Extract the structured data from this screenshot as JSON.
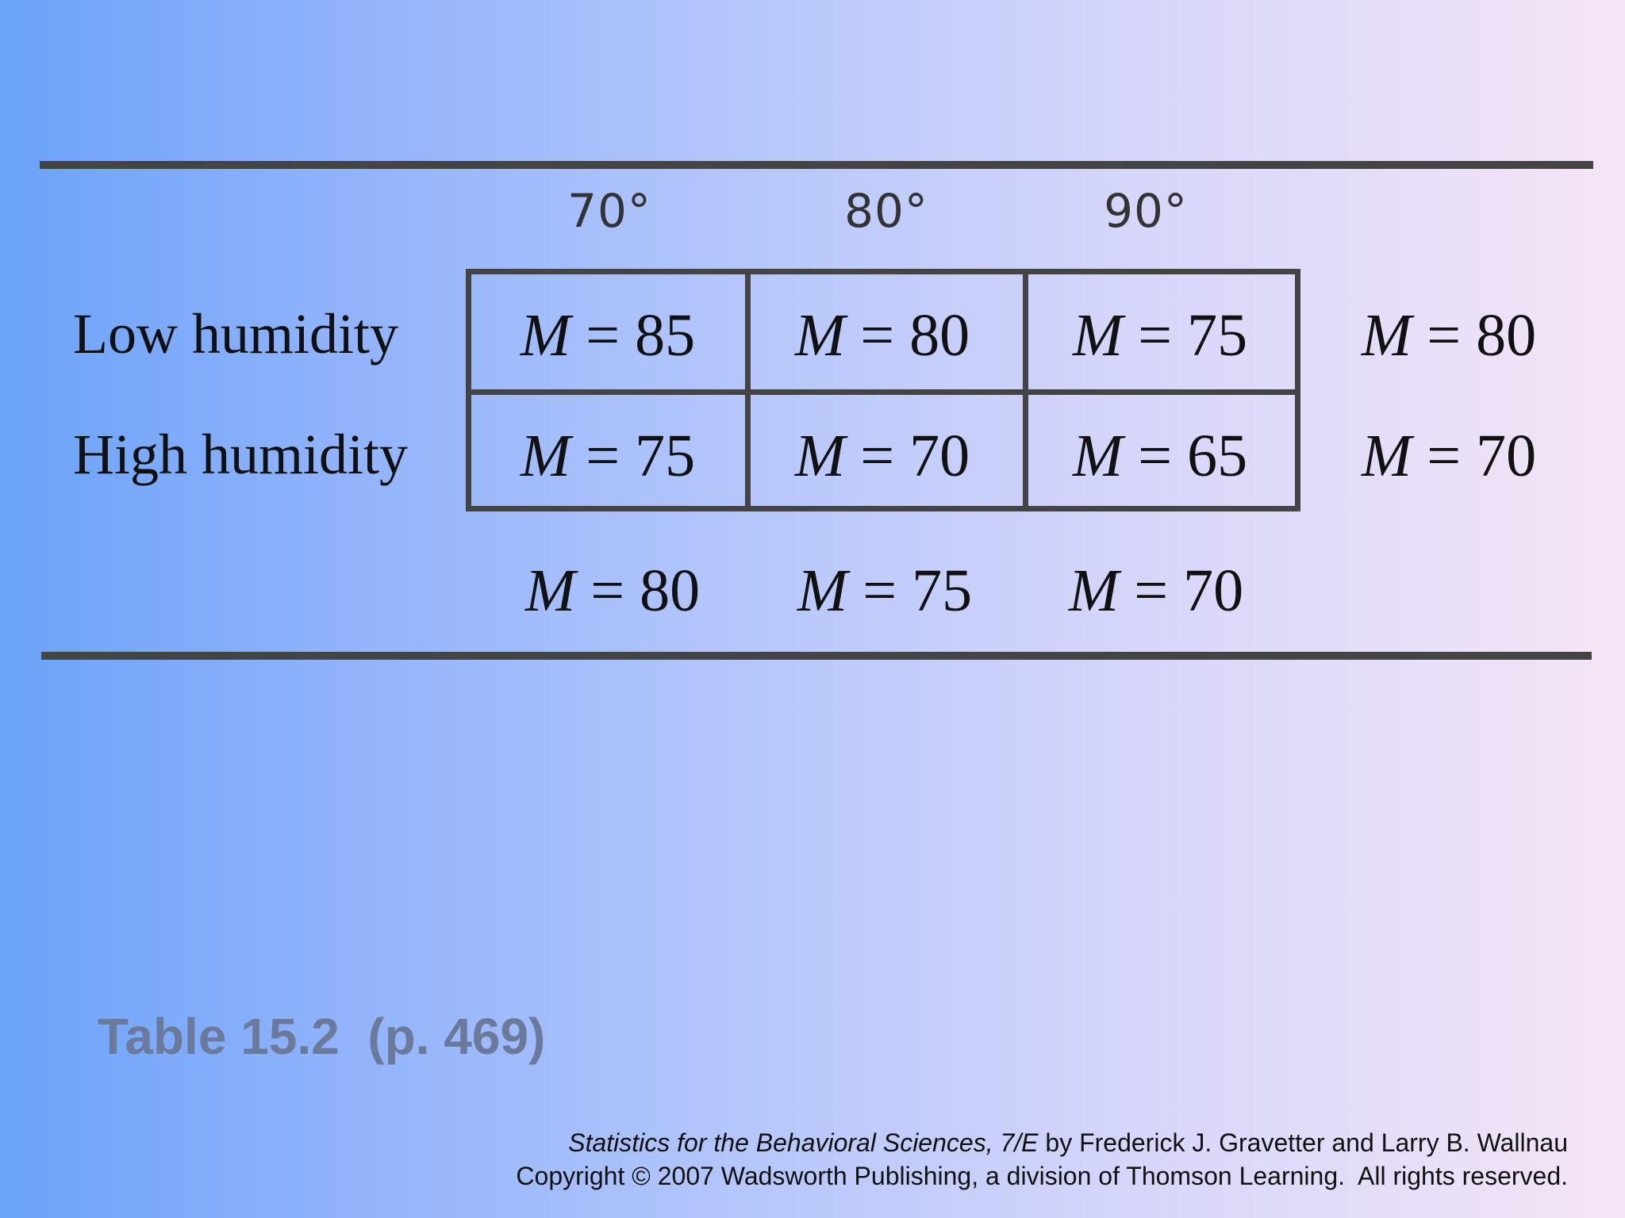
{
  "table": {
    "col_headers": [
      "70°",
      "80°",
      "90°"
    ],
    "row_labels": [
      "Low humidity",
      "High humidity"
    ],
    "m_symbol": "M",
    "equals": "=",
    "cells": [
      [
        "85",
        "80",
        "75"
      ],
      [
        "75",
        "70",
        "65"
      ]
    ],
    "row_means": [
      "80",
      "70"
    ],
    "col_means": [
      "80",
      "75",
      "70"
    ]
  },
  "caption": "Table 15.2  (p. 469)",
  "credits": {
    "book_title": "Statistics for the Behavioral Sciences, 7/E",
    "authors": " by Frederick J. Gravetter and Larry B. Wallnau",
    "copyright": "Copyright © 2007 Wadsworth Publishing, a division of Thomson Learning.  All rights reserved."
  }
}
